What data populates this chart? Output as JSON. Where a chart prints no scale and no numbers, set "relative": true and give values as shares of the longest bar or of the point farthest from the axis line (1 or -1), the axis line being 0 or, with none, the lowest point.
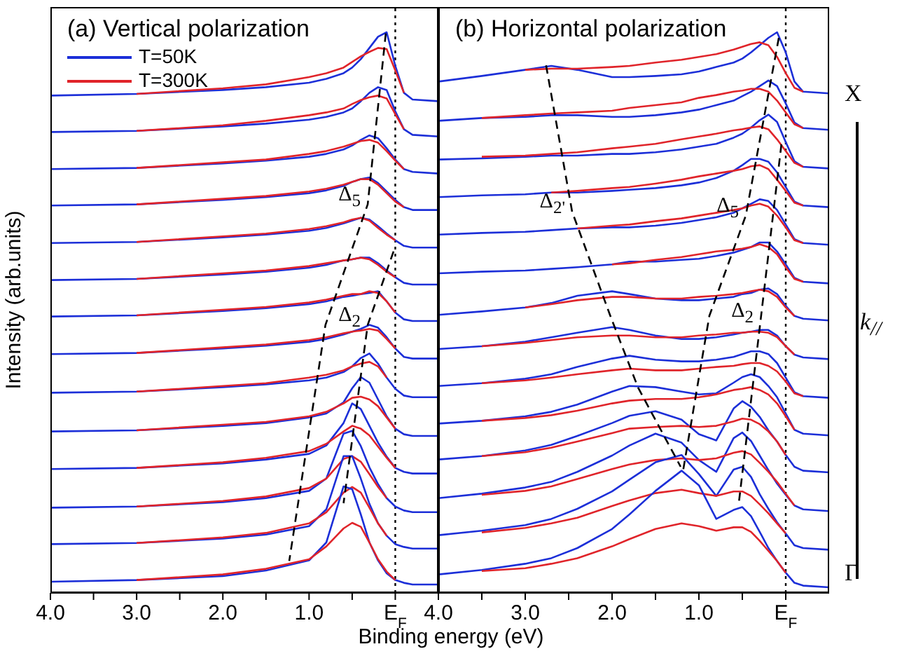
{
  "chart_data": [
    {
      "type": "line",
      "title": "(a) Vertical polarization",
      "xlabel": "Binding energy (eV)",
      "ylabel": "Intensity (arb.units)",
      "relative": true,
      "legend": "top left",
      "marker": "none",
      "line_style": "solid",
      "xlim": [
        4.0,
        -0.5
      ],
      "xticks": [
        {
          "value": 4,
          "label": "4.0"
        },
        {
          "value": 3.5,
          "label": null
        },
        {
          "value": 3,
          "label": "3.0"
        },
        {
          "value": 2.5,
          "label": null
        },
        {
          "value": 2,
          "label": "2.0"
        },
        {
          "value": 1.5,
          "label": null
        },
        {
          "value": 1,
          "label": "1.0"
        },
        {
          "value": 0.5,
          "label": null
        },
        {
          "value": 0,
          "label": "E$_{F}$"
        }
      ],
      "ref_lines": [
        {
          "axis": "x",
          "value": 0,
          "line_style": "dotted",
          "color": "#000000"
        }
      ],
      "annotations": [
        {
          "text": "Δ$_{5}$",
          "x": 0.32,
          "y": 0.693
        },
        {
          "text": "Δ$_{2}$",
          "x": 0.32,
          "y": 0.478
        }
      ],
      "x": [
        4,
        3,
        2,
        1.5,
        1,
        0.8,
        0.6,
        0.5,
        0.4,
        0.3,
        0.2,
        0.1,
        0,
        -0.1,
        -0.2,
        -0.5
      ],
      "series": [
        {
          "name": "T=50K",
          "color": "#1c2fd8",
          "values": [
            0.887,
            0.89,
            0.897,
            0.902,
            0.91,
            0.917,
            0.927,
            0.937,
            0.952,
            0.972,
            0.992,
            1.0,
            0.94,
            0.892,
            0.88,
            0.877
          ]
        },
        {
          "name": "T=300K",
          "color": "#e0242a",
          "values": [
            null,
            0.89,
            0.9,
            0.907,
            0.92,
            0.927,
            0.937,
            0.947,
            0.957,
            0.965,
            0.972,
            0.97,
            0.932,
            0.892,
            null,
            null
          ]
        },
        {
          "color": "#1c2fd8",
          "values": [
            0.822,
            0.824,
            0.832,
            0.837,
            0.844,
            0.849,
            0.857,
            0.864,
            0.877,
            0.892,
            0.902,
            0.897,
            0.859,
            0.827,
            0.817,
            0.814
          ]
        },
        {
          "color": "#e0242a",
          "values": [
            null,
            0.824,
            0.834,
            0.842,
            0.852,
            0.857,
            0.864,
            0.872,
            0.879,
            0.884,
            0.887,
            0.882,
            0.854,
            0.827,
            null,
            null
          ]
        },
        {
          "color": "#1c2fd8",
          "values": [
            0.756,
            0.758,
            0.766,
            0.771,
            0.778,
            0.783,
            0.791,
            0.798,
            0.808,
            0.816,
            0.811,
            0.793,
            0.773,
            0.756,
            0.751,
            0.748
          ]
        },
        {
          "color": "#e0242a",
          "values": [
            null,
            0.758,
            0.768,
            0.773,
            0.783,
            0.788,
            0.796,
            0.801,
            0.806,
            0.808,
            0.803,
            0.788,
            0.771,
            0.756,
            null,
            null
          ]
        },
        {
          "color": "#1c2fd8",
          "values": [
            0.691,
            0.693,
            0.701,
            0.706,
            0.713,
            0.718,
            0.726,
            0.733,
            0.738,
            0.741,
            0.731,
            0.716,
            0.701,
            0.688,
            0.683,
            0.683
          ]
        },
        {
          "color": "#e0242a",
          "values": [
            null,
            0.693,
            0.703,
            0.708,
            0.716,
            0.721,
            0.728,
            0.733,
            0.738,
            0.738,
            0.728,
            0.713,
            0.698,
            0.688,
            null,
            null
          ]
        },
        {
          "color": "#1c2fd8",
          "values": [
            0.624,
            0.626,
            0.634,
            0.639,
            0.646,
            0.651,
            0.659,
            0.664,
            0.669,
            0.666,
            0.654,
            0.641,
            0.629,
            0.619,
            0.616,
            0.616
          ]
        },
        {
          "color": "#e0242a",
          "values": [
            null,
            0.626,
            0.636,
            0.641,
            0.649,
            0.654,
            0.661,
            0.666,
            0.669,
            0.664,
            0.651,
            0.639,
            0.629,
            null,
            null,
            null
          ]
        },
        {
          "color": "#1c2fd8",
          "values": [
            0.558,
            0.56,
            0.568,
            0.573,
            0.58,
            0.585,
            0.593,
            0.595,
            0.598,
            0.598,
            0.588,
            0.575,
            0.563,
            0.553,
            0.55,
            0.55
          ]
        },
        {
          "color": "#e0242a",
          "values": [
            null,
            0.56,
            0.57,
            0.575,
            0.583,
            0.588,
            0.593,
            0.595,
            0.598,
            0.595,
            0.585,
            0.573,
            0.563,
            null,
            null,
            null
          ]
        },
        {
          "color": "#1c2fd8",
          "values": [
            0.493,
            0.495,
            0.503,
            0.508,
            0.515,
            0.52,
            0.528,
            0.53,
            0.533,
            0.535,
            0.538,
            0.52,
            0.5,
            0.488,
            0.485,
            0.485
          ]
        },
        {
          "color": "#e0242a",
          "values": [
            null,
            0.495,
            0.505,
            0.51,
            0.518,
            0.523,
            0.53,
            0.533,
            0.533,
            0.538,
            0.535,
            0.52,
            0.5,
            null,
            null,
            null
          ]
        },
        {
          "color": "#1c2fd8",
          "values": [
            0.426,
            0.428,
            0.436,
            0.441,
            0.448,
            0.453,
            0.461,
            0.466,
            0.471,
            0.478,
            0.473,
            0.456,
            0.436,
            0.421,
            0.418,
            0.418
          ]
        },
        {
          "color": "#e0242a",
          "values": [
            null,
            0.428,
            0.438,
            0.443,
            0.451,
            0.456,
            0.463,
            0.466,
            0.468,
            0.471,
            0.468,
            0.453,
            0.436,
            null,
            null,
            null
          ]
        },
        {
          "color": "#1c2fd8",
          "values": [
            0.357,
            0.359,
            0.367,
            0.372,
            0.379,
            0.384,
            0.394,
            0.404,
            0.419,
            0.427,
            0.409,
            0.384,
            0.364,
            0.352,
            0.349,
            0.349
          ]
        },
        {
          "color": "#e0242a",
          "values": [
            null,
            0.359,
            0.369,
            0.374,
            0.384,
            0.389,
            0.397,
            0.404,
            0.409,
            0.412,
            0.404,
            0.384,
            null,
            null,
            null,
            null
          ]
        },
        {
          "color": "#1c2fd8",
          "values": [
            0.288,
            0.29,
            0.298,
            0.303,
            0.313,
            0.32,
            0.34,
            0.365,
            0.385,
            0.375,
            0.345,
            0.315,
            0.293,
            0.283,
            0.28,
            0.28
          ]
        },
        {
          "color": "#e0242a",
          "values": [
            null,
            0.29,
            0.3,
            0.305,
            0.315,
            0.323,
            0.338,
            0.348,
            0.35,
            0.345,
            0.333,
            0.313,
            0.293,
            null,
            null,
            null
          ]
        },
        {
          "color": "#1c2fd8",
          "values": [
            0.221,
            0.223,
            0.231,
            0.238,
            0.248,
            0.263,
            0.303,
            0.338,
            0.328,
            0.298,
            0.268,
            0.243,
            0.223,
            0.216,
            0.213,
            0.213
          ]
        },
        {
          "color": "#e0242a",
          "values": [
            null,
            0.223,
            0.233,
            0.241,
            0.253,
            0.266,
            0.288,
            0.298,
            0.293,
            0.281,
            0.261,
            0.241,
            0.223,
            null,
            null,
            null
          ]
        },
        {
          "color": "#1c2fd8",
          "values": [
            0.152,
            0.154,
            0.162,
            0.169,
            0.182,
            0.204,
            0.284,
            0.289,
            0.262,
            0.224,
            0.194,
            0.169,
            0.154,
            0.147,
            0.144,
            0.144
          ]
        },
        {
          "color": "#e0242a",
          "values": [
            null,
            0.154,
            0.164,
            0.172,
            0.187,
            0.204,
            0.239,
            0.244,
            0.234,
            0.212,
            0.189,
            0.169,
            null,
            null,
            null,
            null
          ]
        },
        {
          "color": "#1c2fd8",
          "values": [
            0.087,
            0.089,
            0.097,
            0.104,
            0.119,
            0.149,
            0.244,
            0.244,
            0.204,
            0.159,
            0.124,
            0.102,
            0.087,
            0.082,
            0.079,
            0.079
          ]
        },
        {
          "color": "#e0242a",
          "values": [
            null,
            0.089,
            0.099,
            0.107,
            0.124,
            0.144,
            0.179,
            0.189,
            0.179,
            0.152,
            0.124,
            0.102,
            null,
            null,
            null,
            null
          ]
        },
        {
          "color": "#1c2fd8",
          "values": [
            0.02,
            0.023,
            0.03,
            0.04,
            0.058,
            0.09,
            0.19,
            0.185,
            0.14,
            0.09,
            0.058,
            0.035,
            0.023,
            0.018,
            0.015,
            0.015
          ]
        },
        {
          "color": "#e0242a",
          "values": [
            null,
            0.023,
            0.033,
            0.043,
            0.06,
            0.083,
            0.115,
            0.125,
            0.118,
            0.09,
            0.06,
            0.038,
            0.023,
            null,
            null,
            null
          ]
        },
        {
          "type": "line",
          "color": "#000000",
          "line_style": "dashed",
          "x": [
            0.11,
            0.32,
            0.81,
            1.23
          ],
          "values": [
            0.998,
            0.693,
            0.478,
            0.057
          ]
        },
        {
          "type": "line",
          "color": "#000000",
          "line_style": "dashed",
          "x": [
            0.02,
            0.32,
            0.6
          ],
          "values": [
            0.609,
            0.478,
            0.16
          ]
        }
      ]
    },
    {
      "type": "line",
      "title": "(b) Horizontal polarization",
      "relative": true,
      "marker": "none",
      "line_style": "solid",
      "xlim": [
        4.0,
        -0.5
      ],
      "xticks": [
        {
          "value": 4,
          "label": "4.0"
        },
        {
          "value": 3.5,
          "label": null
        },
        {
          "value": 3,
          "label": "3.0"
        },
        {
          "value": 2.5,
          "label": null
        },
        {
          "value": 2,
          "label": "2.0"
        },
        {
          "value": 1.5,
          "label": null
        },
        {
          "value": 1,
          "label": "1.0"
        },
        {
          "value": 0.5,
          "label": null
        },
        {
          "value": 0,
          "label": "E$_{F}$"
        }
      ],
      "ref_lines": [
        {
          "axis": "x",
          "value": 0,
          "line_style": "dotted",
          "color": "#000000"
        }
      ],
      "annotations": [
        {
          "text": "Δ$_{2'}$",
          "x": 2.46,
          "y": 0.68
        },
        {
          "text": "Δ$_{5}$",
          "x": 0.46,
          "y": 0.673
        },
        {
          "text": "Δ$_{2}$",
          "x": 0.29,
          "y": 0.486
        },
        "X",
        "k$_{//}$",
        "Γ"
      ],
      "x": [
        4,
        3.5,
        3,
        2.7,
        2.4,
        2,
        1.8,
        1.5,
        1.2,
        1,
        0.8,
        0.6,
        0.5,
        0.4,
        0.3,
        0.2,
        0.1,
        0,
        -0.1,
        -0.2,
        -0.5
      ],
      "series": [
        {
          "color": "#1c2fd8",
          "values": [
            0.912,
            0.922,
            0.933,
            0.94,
            0.933,
            0.92,
            0.92,
            0.922,
            0.925,
            0.93,
            0.938,
            0.946,
            0.953,
            0.964,
            0.977,
            0.99,
            1.0,
            0.964,
            0.912,
            0.894,
            0.891
          ]
        },
        {
          "color": "#e0242a",
          "values": [
            null,
            null,
            0.933,
            0.935,
            0.935,
            0.938,
            0.94,
            0.946,
            0.951,
            0.956,
            0.961,
            0.969,
            0.974,
            0.979,
            0.982,
            0.977,
            0.956,
            0.927,
            0.901,
            0.894,
            null
          ]
        },
        {
          "color": "#1c2fd8",
          "values": [
            0.842,
            0.847,
            0.849,
            0.852,
            0.852,
            0.849,
            0.849,
            0.852,
            0.857,
            0.862,
            0.87,
            0.878,
            0.886,
            0.894,
            0.904,
            0.914,
            0.904,
            0.873,
            0.839,
            0.829,
            0.826
          ]
        },
        {
          "color": "#e0242a",
          "values": [
            null,
            0.847,
            0.852,
            0.855,
            0.857,
            0.86,
            0.865,
            0.87,
            0.875,
            0.883,
            0.888,
            0.894,
            0.896,
            0.899,
            0.899,
            0.894,
            0.878,
            0.857,
            0.836,
            0.829,
            null
          ]
        },
        {
          "color": "#1c2fd8",
          "values": [
            0.773,
            0.775,
            0.778,
            0.78,
            0.78,
            0.783,
            0.783,
            0.786,
            0.791,
            0.796,
            0.801,
            0.812,
            0.819,
            0.83,
            0.843,
            0.853,
            0.84,
            0.804,
            0.77,
            0.76,
            0.757
          ]
        },
        {
          "color": "#e0242a",
          "values": [
            null,
            0.778,
            0.78,
            0.783,
            0.786,
            0.793,
            0.796,
            0.801,
            0.809,
            0.814,
            0.819,
            0.825,
            0.827,
            0.83,
            0.832,
            0.827,
            0.809,
            0.788,
            0.767,
            0.76,
            null
          ]
        },
        {
          "color": "#1c2fd8",
          "values": [
            0.706,
            0.709,
            0.711,
            0.714,
            0.714,
            0.717,
            0.719,
            0.722,
            0.727,
            0.732,
            0.74,
            0.753,
            0.763,
            0.774,
            0.774,
            0.769,
            0.75,
            0.724,
            0.698,
            0.691,
            0.688
          ]
        },
        {
          "color": "#e0242a",
          "values": [
            null,
            null,
            null,
            0.714,
            0.717,
            0.722,
            0.724,
            0.73,
            0.737,
            0.743,
            0.748,
            0.753,
            0.756,
            0.761,
            0.763,
            0.756,
            0.737,
            0.717,
            0.696,
            0.691,
            null
          ]
        },
        {
          "color": "#1c2fd8",
          "values": [
            0.639,
            0.642,
            0.644,
            0.647,
            0.65,
            0.652,
            0.652,
            0.655,
            0.66,
            0.665,
            0.67,
            0.678,
            0.686,
            0.694,
            0.702,
            0.699,
            0.683,
            0.657,
            0.631,
            0.624,
            0.621
          ]
        },
        {
          "color": "#e0242a",
          "values": [
            null,
            null,
            null,
            null,
            0.65,
            0.655,
            0.657,
            0.663,
            0.668,
            0.673,
            0.678,
            0.683,
            0.686,
            0.691,
            0.694,
            0.689,
            0.673,
            0.652,
            0.629,
            0.624,
            null
          ]
        },
        {
          "color": "#1c2fd8",
          "values": [
            0.57,
            0.573,
            0.575,
            0.578,
            0.581,
            0.586,
            0.591,
            0.591,
            0.594,
            0.596,
            0.601,
            0.607,
            0.612,
            0.617,
            0.625,
            0.625,
            0.609,
            0.586,
            0.562,
            0.555,
            0.552
          ]
        },
        {
          "color": "#e0242a",
          "values": [
            null,
            null,
            null,
            null,
            null,
            0.586,
            0.588,
            0.594,
            0.599,
            0.604,
            0.609,
            0.612,
            0.614,
            0.617,
            0.622,
            0.617,
            0.604,
            0.581,
            0.56,
            0.555,
            null
          ]
        },
        {
          "color": "#1c2fd8",
          "values": [
            0.496,
            0.502,
            0.509,
            0.517,
            0.53,
            0.538,
            0.533,
            0.525,
            0.522,
            0.522,
            0.525,
            0.528,
            0.533,
            0.535,
            0.541,
            0.543,
            0.533,
            0.512,
            0.494,
            0.489,
            0.486
          ]
        },
        {
          "color": "#e0242a",
          "values": [
            null,
            null,
            0.509,
            0.515,
            0.522,
            0.528,
            0.528,
            0.525,
            0.525,
            0.528,
            0.53,
            0.533,
            0.535,
            0.538,
            0.541,
            0.538,
            0.528,
            0.509,
            0.494,
            null,
            null
          ]
        },
        {
          "color": "#1c2fd8",
          "values": [
            0.435,
            0.44,
            0.448,
            0.456,
            0.464,
            0.474,
            0.469,
            0.459,
            0.453,
            0.453,
            0.456,
            0.461,
            0.464,
            0.466,
            0.469,
            0.469,
            0.459,
            0.44,
            0.425,
            0.42,
            0.417
          ]
        },
        {
          "color": "#e0242a",
          "values": [
            null,
            0.44,
            0.446,
            0.451,
            0.456,
            0.459,
            0.459,
            0.456,
            0.456,
            0.459,
            0.461,
            0.464,
            0.464,
            0.466,
            0.466,
            0.464,
            0.456,
            0.44,
            0.425,
            null,
            null
          ]
        },
        {
          "color": "#1c2fd8",
          "values": [
            0.369,
            0.374,
            0.382,
            0.39,
            0.403,
            0.418,
            0.423,
            0.416,
            0.413,
            0.413,
            0.416,
            0.421,
            0.426,
            0.431,
            0.431,
            0.426,
            0.41,
            0.384,
            0.358,
            0.351,
            0.348
          ]
        },
        {
          "color": "#e0242a",
          "values": [
            null,
            0.374,
            0.379,
            0.384,
            0.39,
            0.397,
            0.4,
            0.397,
            0.397,
            0.4,
            0.403,
            0.405,
            0.408,
            0.41,
            0.41,
            0.405,
            0.395,
            0.377,
            0.356,
            0.351,
            null
          ]
        },
        {
          "color": "#1c2fd8",
          "values": [
            0.302,
            0.307,
            0.315,
            0.323,
            0.336,
            0.359,
            0.369,
            0.367,
            0.359,
            0.354,
            0.356,
            0.375,
            0.385,
            0.39,
            0.385,
            0.369,
            0.349,
            0.32,
            0.291,
            0.284,
            0.281
          ]
        },
        {
          "color": "#e0242a",
          "values": [
            null,
            0.307,
            0.312,
            0.317,
            0.325,
            0.338,
            0.343,
            0.346,
            0.346,
            0.349,
            0.354,
            0.362,
            0.364,
            0.367,
            0.362,
            0.354,
            0.338,
            0.315,
            0.291,
            null,
            null
          ]
        },
        {
          "color": "#1c2fd8",
          "values": [
            0.238,
            0.244,
            0.254,
            0.264,
            0.28,
            0.303,
            0.316,
            0.324,
            0.309,
            0.283,
            0.272,
            0.329,
            0.342,
            0.332,
            0.314,
            0.29,
            0.27,
            0.246,
            0.225,
            0.218,
            0.215
          ]
        },
        {
          "color": "#e0242a",
          "values": [
            null,
            0.244,
            0.251,
            0.259,
            0.27,
            0.285,
            0.293,
            0.296,
            0.298,
            0.296,
            0.298,
            0.306,
            0.311,
            0.309,
            0.301,
            0.288,
            0.27,
            0.246,
            null,
            null,
            null
          ]
        },
        {
          "color": "#1c2fd8",
          "values": [
            0.169,
            0.177,
            0.188,
            0.198,
            0.216,
            0.245,
            0.263,
            0.284,
            0.268,
            0.237,
            0.216,
            0.276,
            0.286,
            0.271,
            0.245,
            0.219,
            0.195,
            0.175,
            0.156,
            0.149,
            0.146
          ]
        },
        {
          "color": "#e0242a",
          "values": [
            null,
            0.175,
            0.182,
            0.19,
            0.203,
            0.221,
            0.229,
            0.237,
            0.24,
            0.237,
            0.24,
            0.25,
            0.253,
            0.247,
            0.232,
            0.216,
            0.198,
            0.177,
            0.156,
            null,
            null
          ]
        },
        {
          "color": "#1c2fd8",
          "values": [
            0.103,
            0.111,
            0.121,
            0.132,
            0.15,
            0.181,
            0.202,
            0.233,
            0.246,
            0.212,
            0.173,
            0.22,
            0.225,
            0.207,
            0.176,
            0.15,
            0.126,
            0.106,
            0.085,
            0.08,
            0.077
          ]
        },
        {
          "color": "#e0242a",
          "values": [
            null,
            0.108,
            0.116,
            0.124,
            0.134,
            0.155,
            0.165,
            0.178,
            0.184,
            0.178,
            0.173,
            0.181,
            0.181,
            0.173,
            0.158,
            0.142,
            0.124,
            0.106,
            null,
            null,
            null
          ]
        },
        {
          "color": "#1c2fd8",
          "values": [
            0.033,
            0.041,
            0.052,
            0.062,
            0.08,
            0.114,
            0.14,
            0.182,
            0.218,
            0.192,
            0.132,
            0.148,
            0.153,
            0.137,
            0.109,
            0.08,
            0.057,
            0.036,
            0.018,
            0.013,
            0.01
          ]
        },
        {
          "color": "#e0242a",
          "values": [
            null,
            0.039,
            0.044,
            0.052,
            0.062,
            0.083,
            0.096,
            0.114,
            0.124,
            0.119,
            0.111,
            0.117,
            0.117,
            0.109,
            0.093,
            0.075,
            0.057,
            0.036,
            null,
            null,
            null
          ]
        },
        {
          "type": "line",
          "color": "#000000",
          "line_style": "dashed",
          "x": [
            2.76,
            2.46,
            2.02,
            1.7,
            1.21
          ],
          "values": [
            0.941,
            0.68,
            0.494,
            0.366,
            0.225
          ]
        },
        {
          "type": "line",
          "color": "#000000",
          "line_style": "dashed",
          "x": [
            0.08,
            0.46,
            0.88,
            1.18
          ],
          "values": [
            0.99,
            0.673,
            0.494,
            0.22
          ]
        },
        {
          "type": "line",
          "color": "#000000",
          "line_style": "dashed",
          "x": [
            0.05,
            0.29,
            0.54
          ],
          "values": [
            0.8,
            0.486,
            0.161
          ]
        }
      ]
    }
  ]
}
